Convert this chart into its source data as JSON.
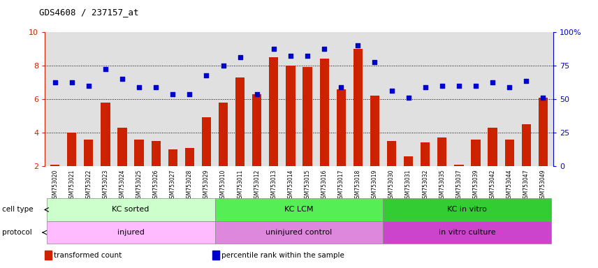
{
  "title": "GDS4608 / 237157_at",
  "samples": [
    "GSM753020",
    "GSM753021",
    "GSM753022",
    "GSM753023",
    "GSM753024",
    "GSM753025",
    "GSM753026",
    "GSM753027",
    "GSM753028",
    "GSM753029",
    "GSM753010",
    "GSM753011",
    "GSM753012",
    "GSM753013",
    "GSM753014",
    "GSM753015",
    "GSM753016",
    "GSM753017",
    "GSM753018",
    "GSM753019",
    "GSM753030",
    "GSM753031",
    "GSM753032",
    "GSM753035",
    "GSM753037",
    "GSM753039",
    "GSM753042",
    "GSM753044",
    "GSM753047",
    "GSM753049"
  ],
  "bar_values": [
    2.1,
    4.0,
    3.6,
    5.8,
    4.3,
    3.6,
    3.5,
    3.0,
    3.1,
    4.9,
    5.8,
    7.3,
    6.3,
    8.5,
    8.0,
    7.9,
    8.4,
    6.6,
    9.0,
    6.2,
    3.5,
    2.6,
    3.4,
    3.7,
    2.1,
    3.6,
    4.3,
    3.6,
    4.5,
    6.1
  ],
  "dot_values": [
    7.0,
    7.0,
    6.8,
    7.8,
    7.2,
    6.7,
    6.7,
    6.3,
    6.3,
    7.4,
    8.0,
    8.5,
    6.3,
    9.0,
    8.6,
    8.6,
    9.0,
    6.7,
    9.2,
    8.2,
    6.5,
    6.1,
    6.7,
    6.8,
    6.8,
    6.8,
    7.0,
    6.7,
    7.1,
    6.1
  ],
  "bar_color": "#cc2200",
  "dot_color": "#0000cc",
  "ylim_left": [
    2,
    10
  ],
  "yticks_left": [
    2,
    4,
    6,
    8,
    10
  ],
  "ylim_right": [
    0,
    100
  ],
  "yticks_right": [
    0,
    25,
    50,
    75,
    100
  ],
  "cell_type_groups": [
    {
      "label": "KC sorted",
      "start": 0,
      "end": 9,
      "color": "#ccffcc"
    },
    {
      "label": "KC LCM",
      "start": 10,
      "end": 19,
      "color": "#55ee55"
    },
    {
      "label": "KC in vitro",
      "start": 20,
      "end": 29,
      "color": "#33cc33"
    }
  ],
  "protocol_groups": [
    {
      "label": "injured",
      "start": 0,
      "end": 9,
      "color": "#ffbbff"
    },
    {
      "label": "uninjured control",
      "start": 10,
      "end": 19,
      "color": "#dd88dd"
    },
    {
      "label": "in vitro culture",
      "start": 20,
      "end": 29,
      "color": "#cc44cc"
    }
  ],
  "legend": [
    {
      "label": "transformed count",
      "color": "#cc2200"
    },
    {
      "label": "percentile rank within the sample",
      "color": "#0000cc"
    }
  ],
  "cell_type_label": "cell type",
  "protocol_label": "protocol",
  "background_color": "#ffffff",
  "plot_bg_color": "#e0e0e0",
  "grid_lines": [
    4,
    6,
    8
  ],
  "hgrid_color": "black",
  "hgrid_style": ":"
}
